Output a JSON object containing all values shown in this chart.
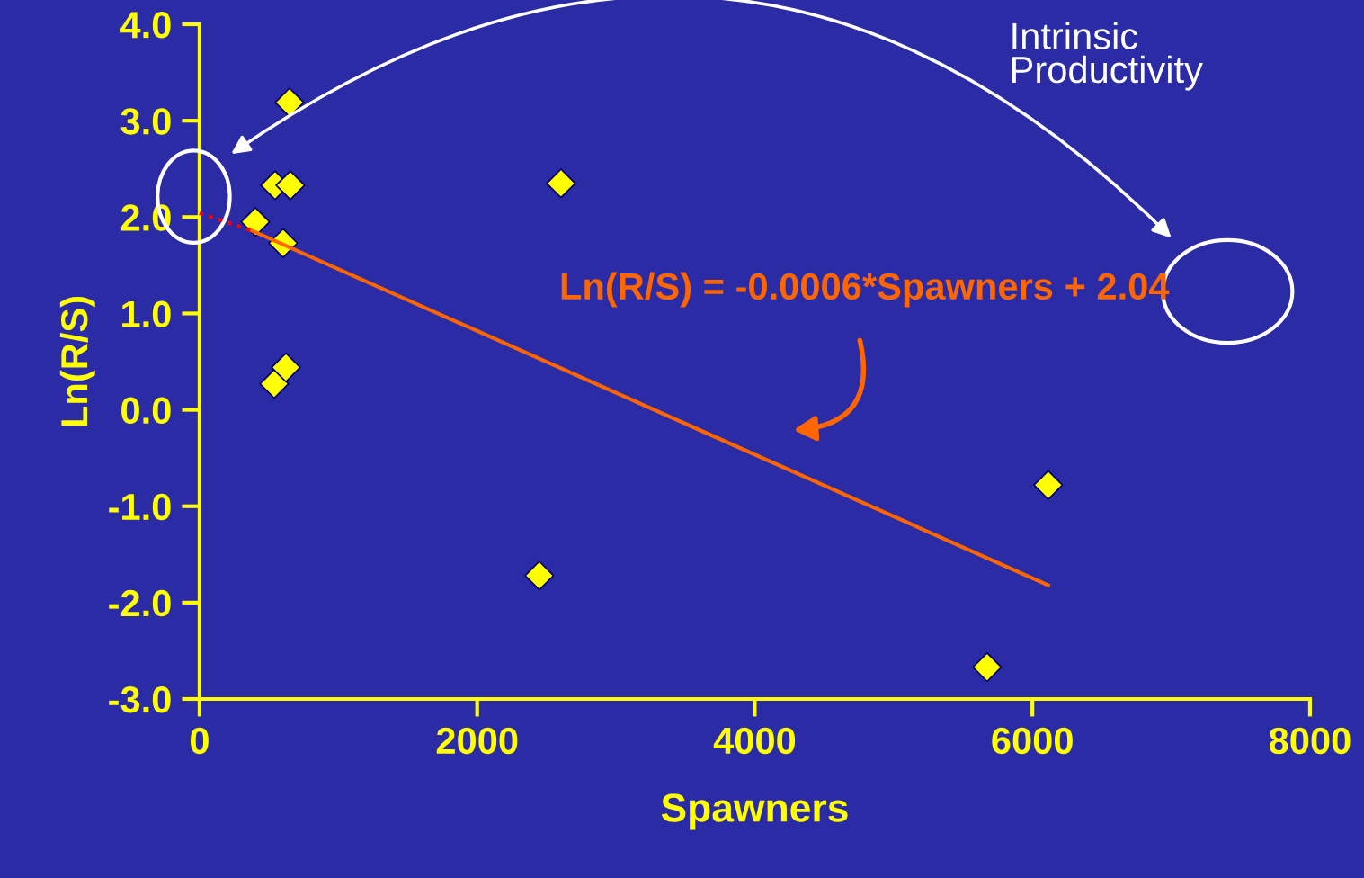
{
  "chart_data": {
    "type": "scatter",
    "xlabel": "Spawners",
    "ylabel": "Ln(R/S)",
    "xlim": [
      0,
      8000
    ],
    "xticks": [
      0,
      2000,
      4000,
      6000,
      8000
    ],
    "ylim": [
      -3,
      4
    ],
    "yticks": [
      {
        "value": -3,
        "label": "-3.0"
      },
      {
        "value": -2,
        "label": "-2.0"
      },
      {
        "value": -1,
        "label": "-1.0"
      },
      {
        "value": 0,
        "label": "0.0"
      },
      {
        "value": 1,
        "label": "1.0"
      },
      {
        "value": 2,
        "label": "2.0"
      },
      {
        "value": 3,
        "label": "3.0"
      },
      {
        "value": 4,
        "label": "4.0"
      }
    ],
    "marker": "diamond",
    "grid": false,
    "legend": false,
    "series": [
      {
        "color": "#ffff00",
        "x": [
          402,
          544,
          654,
          648,
          602,
          538,
          622,
          2604,
          2448,
          5674,
          6114
        ],
        "values": [
          1.95,
          2.33,
          2.33,
          3.19,
          1.73,
          0.27,
          0.44,
          2.35,
          -1.72,
          -2.67,
          -0.78
        ]
      },
      {
        "type": "line",
        "color": "#ff6600",
        "line_style": "solid",
        "marker": "none",
        "x": [
          376,
          6114
        ],
        "values": [
          1.86,
          -1.82
        ]
      },
      {
        "type": "line",
        "color": "#ff0000",
        "line_style": "dotted",
        "marker": "none",
        "x": [
          0,
          376
        ],
        "values": [
          2.04,
          1.86
        ]
      }
    ],
    "annotations": [
      "Intrinsic Productivity",
      "Ln(R/S) = -0.0006*Spawners + 2.04"
    ]
  }
}
